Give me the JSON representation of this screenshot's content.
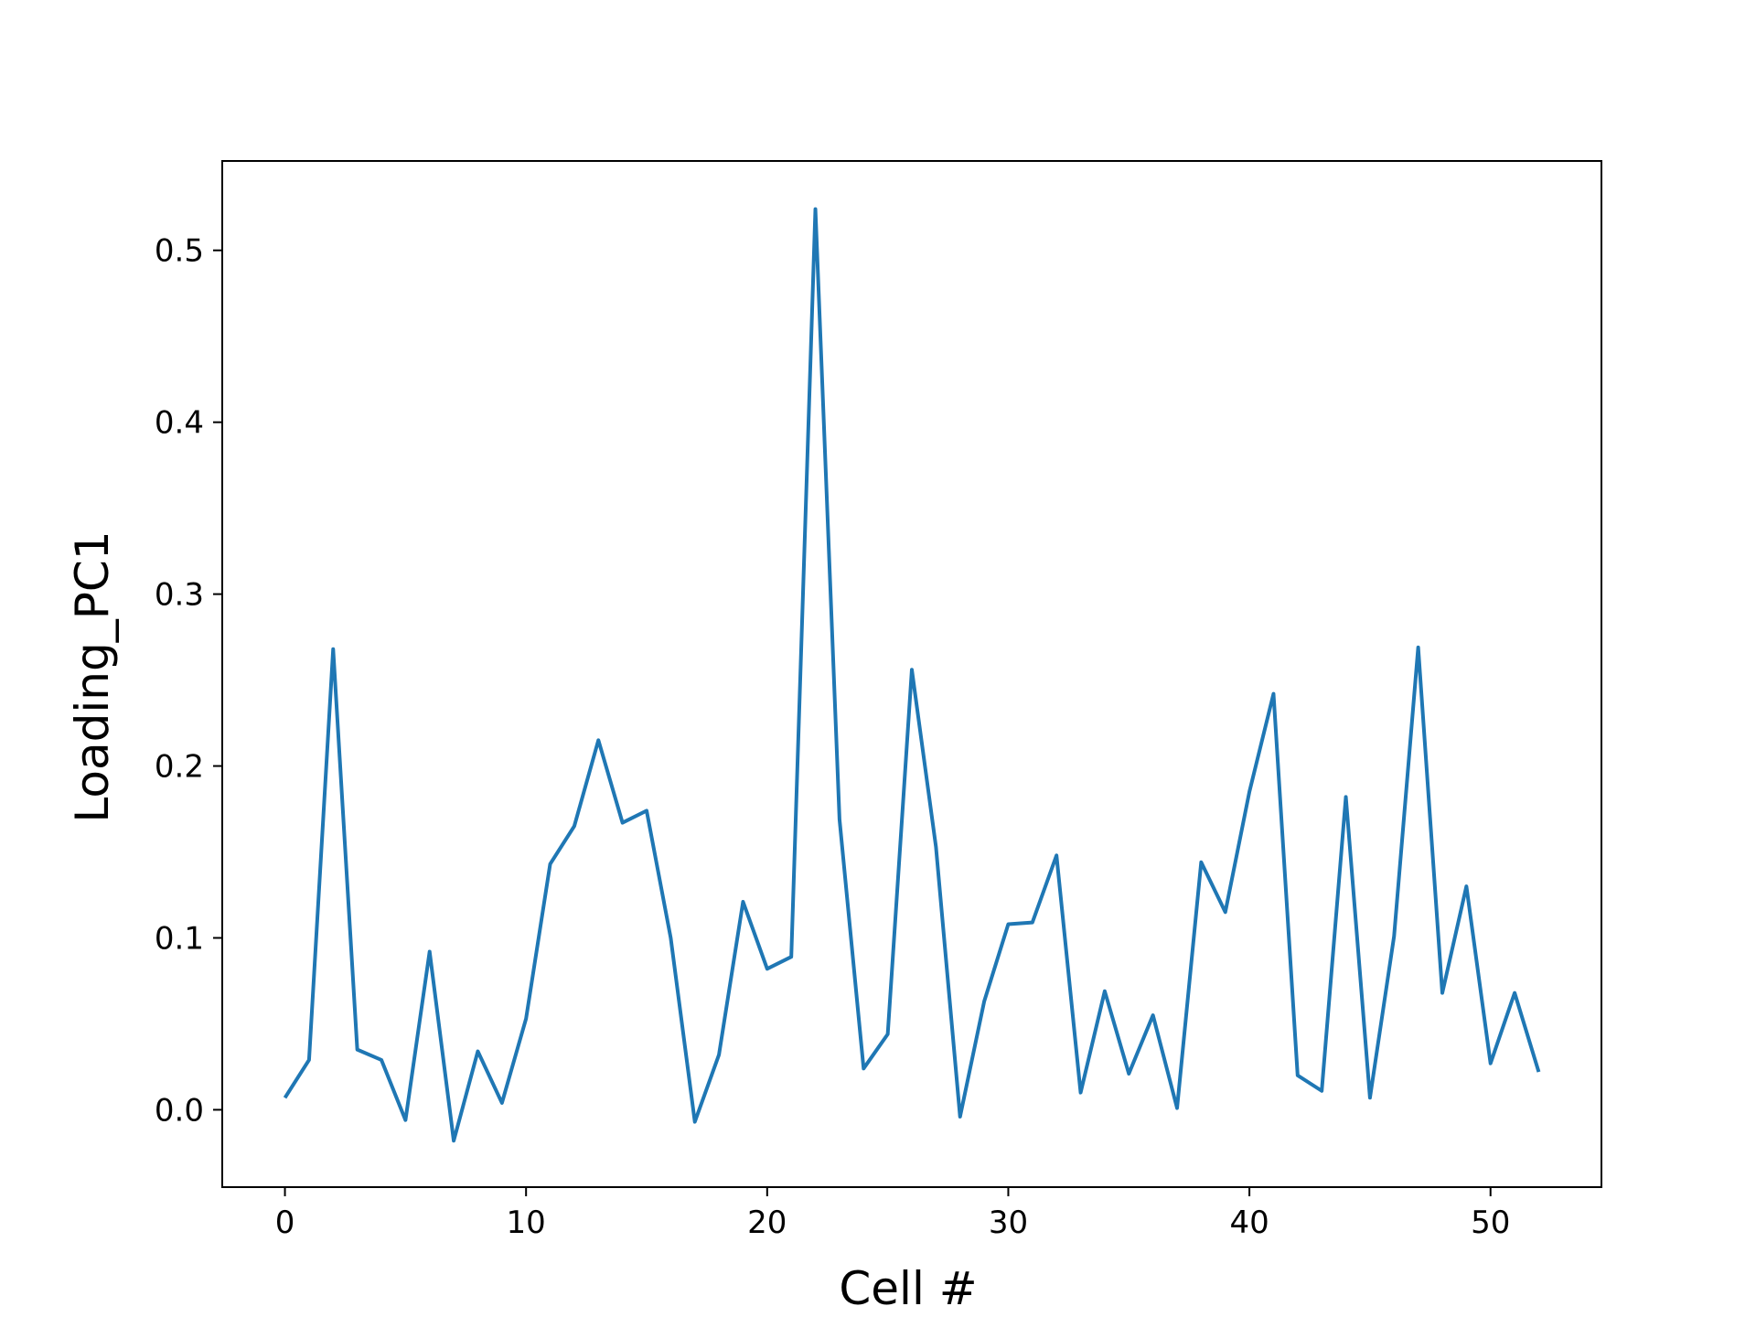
{
  "chart_data": {
    "type": "line",
    "title": "",
    "xlabel": "Cell #",
    "ylabel": "Loading_PC1",
    "xlim": [
      -2.6,
      54.6
    ],
    "ylim": [
      -0.045,
      0.552
    ],
    "xticks": [
      0,
      10,
      20,
      30,
      40,
      50
    ],
    "xtick_labels": [
      "0",
      "10",
      "20",
      "30",
      "40",
      "50"
    ],
    "yticks": [
      0.0,
      0.1,
      0.2,
      0.3,
      0.4,
      0.5
    ],
    "ytick_labels": [
      "0.0",
      "0.1",
      "0.2",
      "0.3",
      "0.4",
      "0.5"
    ],
    "grid": false,
    "legend": false,
    "line_color": "#1f77b4",
    "series": [
      {
        "x": [
          0,
          1,
          2,
          3,
          4,
          5,
          6,
          7,
          8,
          9,
          10,
          11,
          12,
          13,
          14,
          15,
          16,
          17,
          18,
          19,
          20,
          21,
          22,
          23,
          24,
          25,
          26,
          27,
          28,
          29,
          30,
          31,
          32,
          33,
          34,
          35,
          36,
          37,
          38,
          39,
          40,
          41,
          42,
          43,
          44,
          45,
          46,
          47,
          48,
          49,
          50,
          51,
          52
        ],
        "values": [
          0.007,
          0.029,
          0.268,
          0.035,
          0.029,
          -0.006,
          0.092,
          -0.018,
          0.034,
          0.004,
          0.053,
          0.143,
          0.165,
          0.215,
          0.167,
          0.174,
          0.1,
          -0.007,
          0.032,
          0.121,
          0.082,
          0.089,
          0.524,
          0.169,
          0.024,
          0.044,
          0.256,
          0.153,
          -0.004,
          0.063,
          0.108,
          0.109,
          0.148,
          0.01,
          0.069,
          0.021,
          0.055,
          0.001,
          0.144,
          0.115,
          0.185,
          0.242,
          0.02,
          0.011,
          0.182,
          0.007,
          0.101,
          0.269,
          0.068,
          0.13,
          0.027,
          0.068,
          0.022
        ]
      }
    ]
  }
}
